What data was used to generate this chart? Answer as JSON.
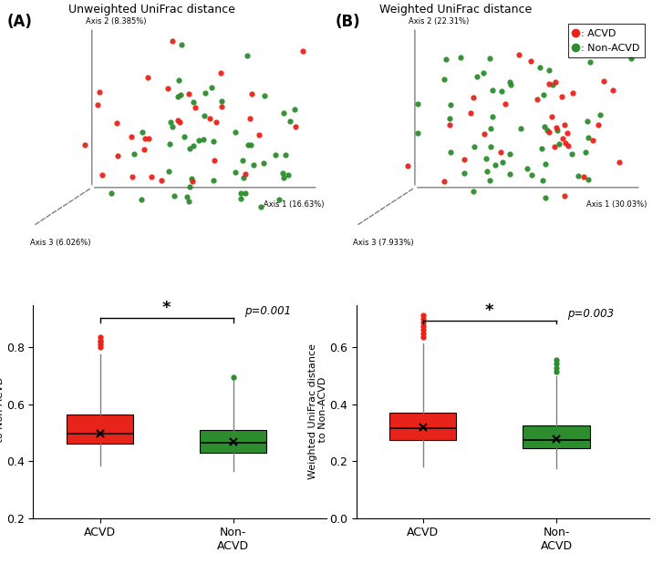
{
  "panel_A_title": "Unweighted UniFrac distance",
  "panel_B_title": "Weighted UniFrac distance",
  "axis1_A_label": "Axis 1 (16.63%)",
  "axis2_A_label": "Axis 2 (8.385%)",
  "axis3_A_label": "Axis 3 (6.026%)",
  "axis1_B_label": "Axis 1 (30.03%)",
  "axis2_B_label": "Axis 2 (22.31%)",
  "axis3_B_label": "Axis 3 (7.933%)",
  "acvd_color": "#e8241a",
  "non_acvd_color": "#2d8c2d",
  "box_acvd_color": "#e8241a",
  "box_non_acvd_color": "#2d8c2d",
  "ylabel_A": "Unweighted UniFrac distance\n to Non-ACVD",
  "ylabel_B": "Weighted UniFrac distance\n to Non-ACVD",
  "pvalue_A": "p=0.001",
  "pvalue_B": "p=0.003",
  "ylim_A": [
    0.2,
    0.95
  ],
  "ylim_B": [
    0.0,
    0.75
  ],
  "yticks_A": [
    0.2,
    0.4,
    0.6,
    0.8
  ],
  "yticks_B": [
    0.0,
    0.2,
    0.4,
    0.6
  ],
  "box_A_acvd": {
    "median": 0.495,
    "q1": 0.46,
    "q3": 0.565,
    "whislo": 0.385,
    "whishi": 0.775,
    "mean": 0.497,
    "fliers_high": [
      0.8,
      0.81,
      0.82,
      0.825,
      0.835
    ]
  },
  "box_A_non_acvd": {
    "median": 0.465,
    "q1": 0.43,
    "q3": 0.51,
    "whislo": 0.365,
    "whishi": 0.685,
    "mean": 0.468,
    "fliers_high": [
      0.695
    ]
  },
  "box_B_acvd": {
    "median": 0.315,
    "q1": 0.275,
    "q3": 0.37,
    "whislo": 0.18,
    "whishi": 0.615,
    "mean": 0.32,
    "fliers_high": [
      0.635,
      0.648,
      0.661,
      0.674,
      0.687,
      0.7,
      0.713
    ]
  },
  "box_B_non_acvd": {
    "median": 0.275,
    "q1": 0.245,
    "q3": 0.325,
    "whislo": 0.175,
    "whishi": 0.5,
    "mean": 0.278,
    "fliers_high": [
      0.515,
      0.528,
      0.542,
      0.555
    ]
  }
}
